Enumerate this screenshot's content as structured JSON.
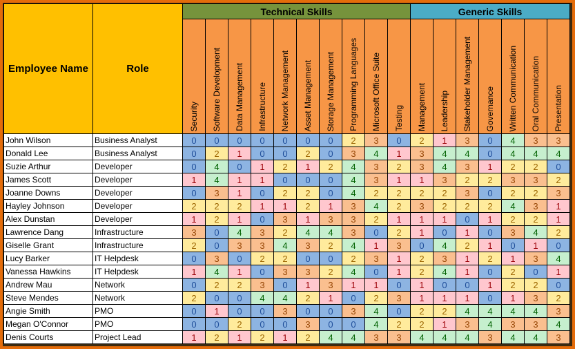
{
  "headers": {
    "employee": "Employee Name",
    "role": "Role",
    "technical_group": "Technical Skills",
    "generic_group": "Generic Skills"
  },
  "technical_skills": [
    "Security",
    "Software Development",
    "Data Management",
    "Infrastructure",
    "Network Management",
    "Asset Management",
    "Storage Management",
    "Programming Languages",
    "Microsoft Office Suite",
    "Testing"
  ],
  "generic_skills": [
    "Management",
    "Leadership",
    "Stakeholder Management",
    "Governance",
    "Written Communication",
    "Oral Communication",
    "Presentation"
  ],
  "level_colors": {
    "0": "#8db4e2",
    "1": "#ffc7ce",
    "2": "#ffeb9c",
    "3": "#fabf8f",
    "4": "#c6efce"
  },
  "employees": [
    {
      "name": "John Wilson",
      "role": "Business Analyst",
      "scores": [
        0,
        0,
        0,
        0,
        0,
        0,
        0,
        2,
        3,
        0,
        2,
        1,
        3,
        0,
        4,
        3,
        3
      ]
    },
    {
      "name": "Donald Lee",
      "role": "Business Analyst",
      "scores": [
        0,
        2,
        1,
        0,
        0,
        2,
        0,
        3,
        4,
        1,
        3,
        4,
        4,
        0,
        4,
        4,
        4
      ]
    },
    {
      "name": "Suzie Arthur",
      "role": "Developer",
      "scores": [
        0,
        4,
        0,
        1,
        2,
        1,
        2,
        4,
        3,
        2,
        3,
        4,
        3,
        1,
        2,
        2,
        0
      ]
    },
    {
      "name": "James Scott",
      "role": "Developer",
      "scores": [
        1,
        4,
        1,
        1,
        0,
        0,
        0,
        4,
        3,
        1,
        1,
        3,
        2,
        2,
        3,
        3,
        2
      ]
    },
    {
      "name": "Joanne Downs",
      "role": "Developer",
      "scores": [
        0,
        3,
        1,
        0,
        2,
        2,
        0,
        4,
        2,
        2,
        2,
        2,
        3,
        0,
        2,
        2,
        3
      ]
    },
    {
      "name": "Hayley Johnson",
      "role": "Developer",
      "scores": [
        2,
        2,
        2,
        1,
        1,
        2,
        1,
        3,
        4,
        2,
        3,
        2,
        2,
        2,
        4,
        3,
        1
      ]
    },
    {
      "name": "Alex Dunstan",
      "role": "Developer",
      "scores": [
        1,
        2,
        1,
        0,
        3,
        1,
        3,
        3,
        2,
        1,
        1,
        1,
        0,
        1,
        2,
        2,
        1
      ]
    },
    {
      "name": "Lawrence Dang",
      "role": "Infrastructure",
      "scores": [
        3,
        0,
        4,
        3,
        2,
        4,
        4,
        3,
        0,
        2,
        1,
        0,
        1,
        0,
        3,
        4,
        2
      ]
    },
    {
      "name": "Giselle Grant",
      "role": "Infrastructure",
      "scores": [
        2,
        0,
        3,
        3,
        4,
        3,
        2,
        4,
        1,
        3,
        0,
        4,
        2,
        1,
        0,
        1,
        0
      ]
    },
    {
      "name": "Lucy Barker",
      "role": "IT Helpdesk",
      "scores": [
        0,
        3,
        0,
        2,
        2,
        0,
        0,
        2,
        3,
        1,
        2,
        3,
        1,
        2,
        1,
        3,
        4
      ]
    },
    {
      "name": "Vanessa Hawkins",
      "role": "IT Helpdesk",
      "scores": [
        1,
        4,
        1,
        0,
        3,
        3,
        2,
        4,
        0,
        1,
        2,
        4,
        1,
        0,
        2,
        0,
        1
      ]
    },
    {
      "name": "Andrew Mau",
      "role": "Network",
      "scores": [
        0,
        2,
        2,
        3,
        0,
        1,
        3,
        1,
        1,
        0,
        1,
        0,
        0,
        1,
        2,
        2,
        0
      ]
    },
    {
      "name": "Steve Mendes",
      "role": "Network",
      "scores": [
        2,
        0,
        0,
        4,
        4,
        2,
        1,
        0,
        2,
        3,
        1,
        1,
        1,
        0,
        1,
        3,
        2
      ]
    },
    {
      "name": "Angie Smith",
      "role": "PMO",
      "scores": [
        0,
        1,
        0,
        0,
        3,
        0,
        0,
        3,
        4,
        0,
        2,
        2,
        4,
        4,
        4,
        4,
        3
      ]
    },
    {
      "name": "Megan O'Connor",
      "role": "PMO",
      "scores": [
        0,
        0,
        2,
        0,
        0,
        3,
        0,
        0,
        4,
        2,
        2,
        1,
        3,
        4,
        3,
        3,
        4
      ]
    },
    {
      "name": "Denis Courts",
      "role": "Project Lead",
      "scores": [
        1,
        2,
        1,
        2,
        1,
        2,
        4,
        4,
        3,
        3,
        4,
        4,
        4,
        3,
        4,
        4,
        3
      ]
    }
  ]
}
